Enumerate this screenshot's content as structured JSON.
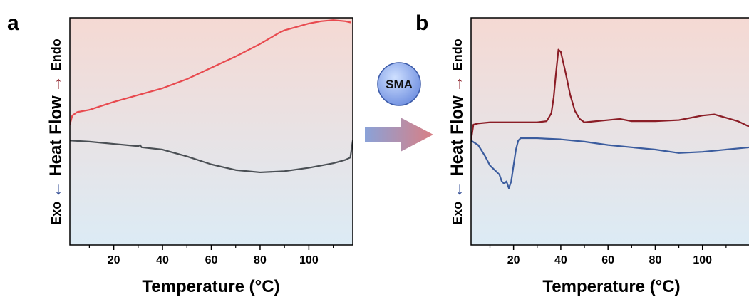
{
  "arrow_badge": {
    "label": "SMA",
    "colors": {
      "badge": "#6f8fe0",
      "arrow_start": "#8aa2d8",
      "arrow_end": "#d97f84"
    }
  },
  "chart_data": [
    {
      "type": "line",
      "panel_label": "a",
      "xlabel": "Temperature (°C)",
      "ylabel": {
        "exo": "Exo",
        "main": "Heat Flow",
        "endo": "Endo"
      },
      "xlim": [
        2,
        118
      ],
      "ylim": [
        0,
        1
      ],
      "xticks": [
        20,
        40,
        60,
        80,
        100
      ],
      "colors": {
        "bg_top": "#f5d9d3",
        "bg_bottom": "#dcebf5",
        "exo_arrow": "#2f4a93",
        "endo_arrow": "#8b1d26"
      },
      "series": [
        {
          "color": "#e84a4f",
          "x": [
            2,
            3,
            5,
            10,
            20,
            30,
            40,
            50,
            60,
            70,
            80,
            88,
            90,
            95,
            100,
            105,
            110,
            115,
            117
          ],
          "y": [
            0.53,
            0.57,
            0.585,
            0.595,
            0.63,
            0.66,
            0.69,
            0.73,
            0.78,
            0.83,
            0.885,
            0.935,
            0.945,
            0.96,
            0.975,
            0.985,
            0.99,
            0.985,
            0.98
          ]
        },
        {
          "color": "#4a4f54",
          "x": [
            2,
            10,
            20,
            30,
            30.8,
            31.4,
            40,
            50,
            60,
            70,
            80,
            90,
            100,
            110,
            115,
            117,
            118
          ],
          "y": [
            0.46,
            0.455,
            0.445,
            0.435,
            0.44,
            0.43,
            0.42,
            0.39,
            0.355,
            0.33,
            0.32,
            0.325,
            0.34,
            0.36,
            0.375,
            0.385,
            0.46
          ]
        }
      ]
    },
    {
      "type": "line",
      "panel_label": "b",
      "xlabel": "Temperature (°C)",
      "ylabel": {
        "exo": "Exo",
        "main": "Heat Flow",
        "endo": "Endo"
      },
      "xlim": [
        2,
        120
      ],
      "ylim": [
        0,
        1
      ],
      "xticks": [
        20,
        40,
        60,
        80,
        100
      ],
      "colors": {
        "bg_top": "#f5d9d3",
        "bg_bottom": "#dcebf5",
        "exo_arrow": "#2f4a93",
        "endo_arrow": "#8b1d26"
      },
      "series": [
        {
          "color": "#8b1d26",
          "x": [
            2,
            3,
            5,
            10,
            20,
            30,
            34,
            36,
            37,
            38,
            39,
            40,
            42,
            44,
            46,
            48,
            50,
            55,
            60,
            65,
            70,
            80,
            90,
            95,
            100,
            105,
            110,
            115,
            120
          ],
          "y": [
            0.46,
            0.53,
            0.535,
            0.54,
            0.54,
            0.54,
            0.545,
            0.58,
            0.65,
            0.76,
            0.86,
            0.85,
            0.76,
            0.66,
            0.59,
            0.555,
            0.54,
            0.545,
            0.55,
            0.555,
            0.545,
            0.545,
            0.55,
            0.56,
            0.57,
            0.575,
            0.56,
            0.545,
            0.52
          ]
        },
        {
          "color": "#3b5c9e",
          "x": [
            2,
            5,
            8,
            10,
            12,
            14,
            15,
            16,
            17,
            18,
            19,
            20,
            21,
            22,
            23,
            25,
            30,
            40,
            50,
            60,
            70,
            80,
            90,
            100,
            110,
            120
          ],
          "y": [
            0.46,
            0.44,
            0.39,
            0.35,
            0.33,
            0.31,
            0.28,
            0.27,
            0.28,
            0.25,
            0.28,
            0.35,
            0.42,
            0.46,
            0.47,
            0.47,
            0.47,
            0.465,
            0.455,
            0.44,
            0.43,
            0.42,
            0.405,
            0.41,
            0.42,
            0.43
          ]
        }
      ]
    }
  ]
}
